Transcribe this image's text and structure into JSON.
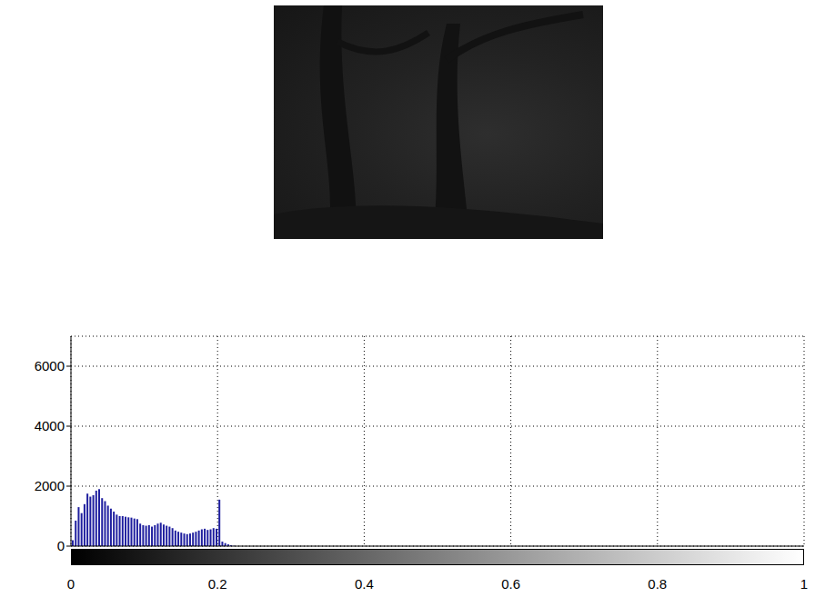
{
  "chart_data": {
    "type": "histogram",
    "bins": [
      0,
      0.004,
      0.008,
      0.012,
      0.016,
      0.02,
      0.024,
      0.028,
      0.032,
      0.036,
      0.04,
      0.044,
      0.048,
      0.052,
      0.056,
      0.06,
      0.064,
      0.068,
      0.072,
      0.076,
      0.08,
      0.084,
      0.088,
      0.092,
      0.096,
      0.1,
      0.104,
      0.108,
      0.112,
      0.116,
      0.12,
      0.124,
      0.128,
      0.132,
      0.136,
      0.14,
      0.144,
      0.148,
      0.152,
      0.156,
      0.16,
      0.164,
      0.168,
      0.172,
      0.176,
      0.18,
      0.184,
      0.188,
      0.192,
      0.196,
      0.2,
      0.204,
      0.208,
      0.212,
      0.216,
      0.22,
      0.224
    ],
    "counts": [
      200,
      850,
      1300,
      1100,
      1400,
      1750,
      1650,
      1700,
      1850,
      1900,
      1600,
      1500,
      1350,
      1250,
      1150,
      1050,
      1000,
      1000,
      980,
      960,
      950,
      920,
      900,
      750,
      700,
      680,
      700,
      650,
      700,
      750,
      780,
      720,
      680,
      650,
      600,
      520,
      480,
      450,
      420,
      400,
      420,
      450,
      480,
      520,
      560,
      580,
      540,
      560,
      600,
      580,
      1550,
      150,
      100,
      60,
      30,
      10
    ],
    "color": "#1f1f9f",
    "xlim": [
      0,
      1
    ],
    "xticks": [
      0,
      0.2,
      0.4,
      0.6,
      0.8,
      1
    ],
    "ylim": [
      0,
      7000
    ],
    "yticks": [
      0,
      2000,
      4000,
      6000
    ],
    "grid": true
  }
}
